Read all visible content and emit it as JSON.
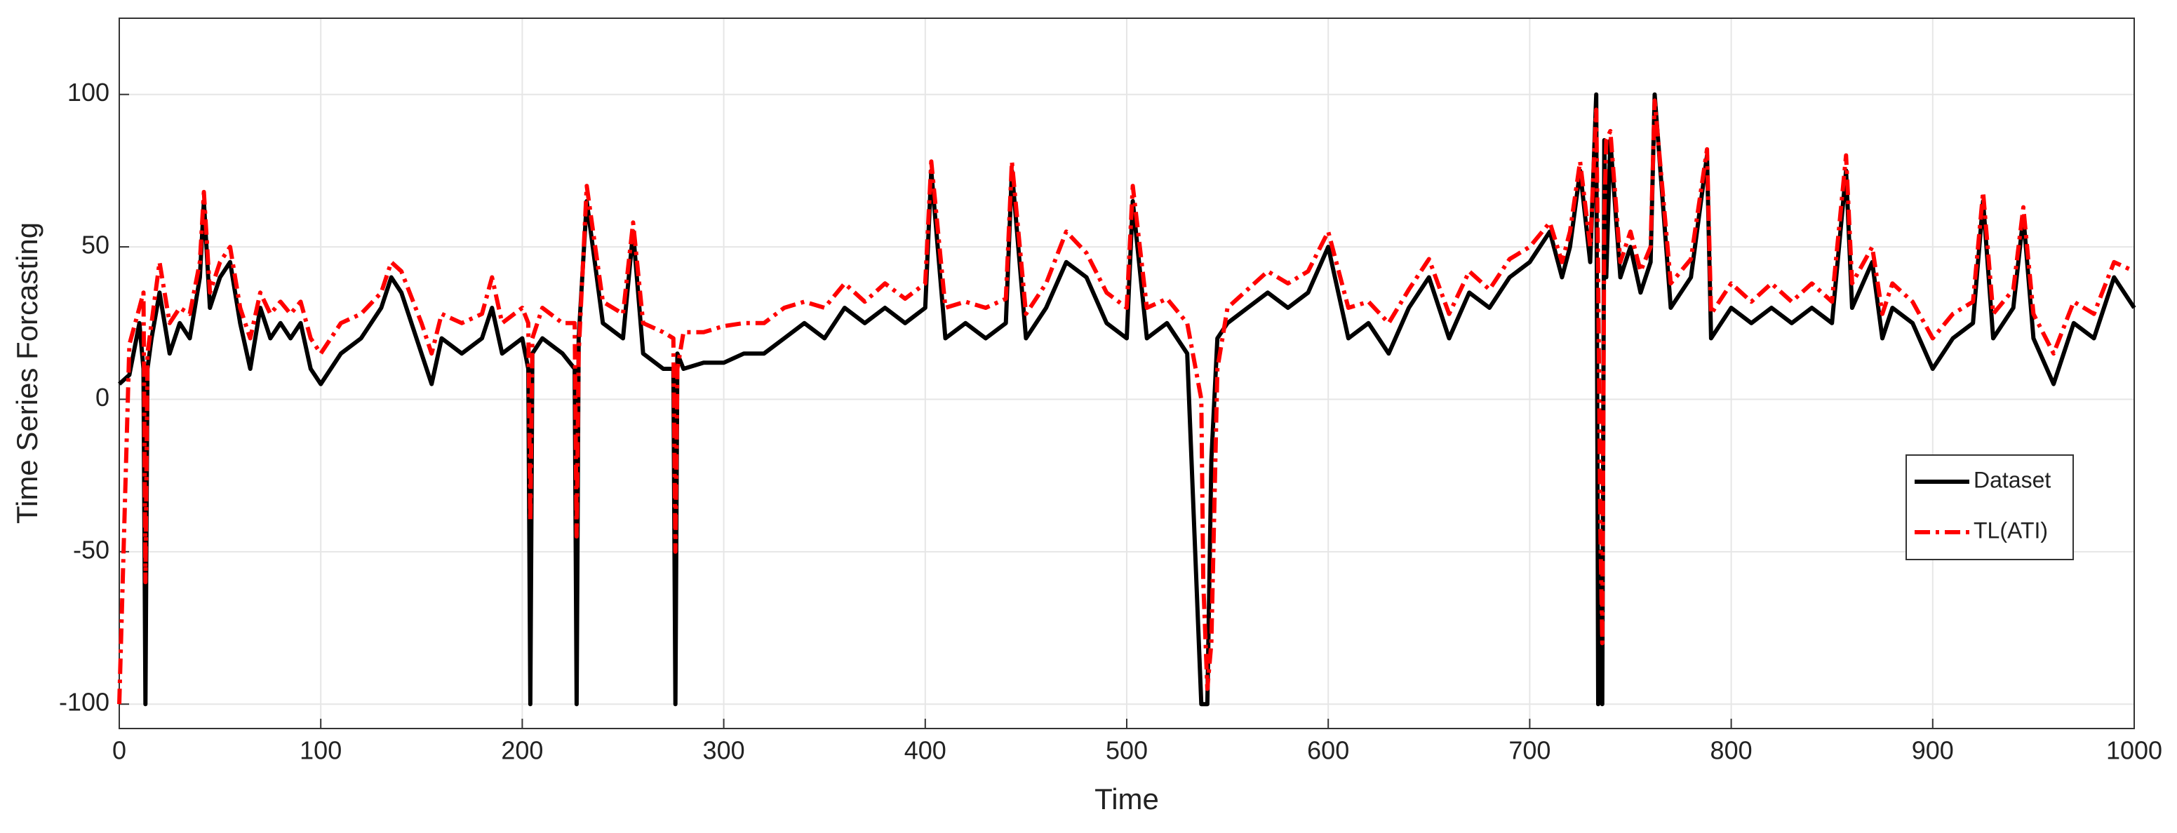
{
  "chart_data": {
    "type": "line",
    "xlabel": "Time",
    "ylabel": "Time Series Forcasting",
    "xlim": [
      0,
      1000
    ],
    "xticks": [
      0,
      100,
      200,
      300,
      400,
      500,
      600,
      700,
      800,
      900,
      1000
    ],
    "ylim": [
      -108,
      125
    ],
    "yticks": [
      -100,
      -50,
      0,
      50,
      100
    ],
    "grid": true,
    "legend": "right",
    "x": [
      0,
      5,
      10,
      12,
      13,
      14,
      16,
      20,
      25,
      30,
      35,
      40,
      42,
      45,
      50,
      55,
      60,
      65,
      70,
      75,
      80,
      85,
      90,
      95,
      100,
      110,
      120,
      130,
      135,
      140,
      150,
      155,
      160,
      170,
      180,
      185,
      190,
      200,
      203,
      204,
      205,
      210,
      220,
      226,
      227,
      228,
      232,
      240,
      250,
      255,
      260,
      270,
      275,
      276,
      277,
      280,
      290,
      300,
      310,
      320,
      330,
      340,
      350,
      360,
      370,
      380,
      390,
      400,
      403,
      410,
      420,
      430,
      440,
      443,
      450,
      460,
      470,
      480,
      490,
      500,
      503,
      510,
      520,
      530,
      537,
      538,
      540,
      542,
      545,
      550,
      560,
      570,
      580,
      590,
      600,
      610,
      620,
      630,
      640,
      650,
      660,
      670,
      680,
      690,
      700,
      710,
      716,
      720,
      725,
      730,
      733,
      734,
      735,
      736,
      737,
      738,
      740,
      745,
      750,
      755,
      760,
      762,
      770,
      780,
      788,
      790,
      800,
      810,
      820,
      830,
      840,
      850,
      857,
      860,
      870,
      875,
      880,
      890,
      900,
      910,
      920,
      925,
      930,
      940,
      945,
      950,
      960,
      970,
      980,
      990,
      1000
    ],
    "series": [
      {
        "name": "Dataset",
        "color": "#000000",
        "line_style": "solid",
        "values": [
          5,
          8,
          25,
          10,
          -100,
          10,
          20,
          35,
          15,
          25,
          20,
          40,
          65,
          30,
          40,
          45,
          25,
          10,
          30,
          20,
          25,
          20,
          25,
          10,
          5,
          15,
          20,
          30,
          40,
          35,
          15,
          5,
          20,
          15,
          20,
          30,
          15,
          20,
          10,
          -100,
          15,
          20,
          15,
          10,
          -100,
          20,
          65,
          25,
          20,
          55,
          15,
          10,
          10,
          -100,
          15,
          10,
          12,
          12,
          15,
          15,
          20,
          25,
          20,
          30,
          25,
          30,
          25,
          30,
          75,
          20,
          25,
          20,
          25,
          75,
          20,
          30,
          45,
          40,
          25,
          20,
          65,
          20,
          25,
          15,
          -100,
          -100,
          -100,
          -20,
          20,
          25,
          30,
          35,
          30,
          35,
          50,
          20,
          25,
          15,
          30,
          40,
          20,
          35,
          30,
          40,
          45,
          55,
          40,
          50,
          75,
          45,
          100,
          -100,
          -50,
          -100,
          85,
          40,
          85,
          40,
          50,
          35,
          45,
          100,
          30,
          40,
          80,
          20,
          30,
          25,
          30,
          25,
          30,
          25,
          75,
          30,
          45,
          20,
          30,
          25,
          10,
          20,
          25,
          65,
          20,
          30,
          60,
          20,
          5,
          25,
          20,
          40,
          30
        ]
      },
      {
        "name": "TL(ATI)",
        "color": "#ff0000",
        "line_style": "dash-dot",
        "values": [
          -100,
          18,
          30,
          35,
          -60,
          15,
          25,
          45,
          25,
          30,
          28,
          45,
          68,
          35,
          45,
          50,
          30,
          20,
          35,
          28,
          32,
          28,
          32,
          20,
          15,
          25,
          28,
          35,
          45,
          42,
          25,
          15,
          28,
          25,
          28,
          40,
          25,
          30,
          25,
          -40,
          20,
          30,
          25,
          25,
          -45,
          15,
          70,
          32,
          28,
          58,
          25,
          22,
          20,
          -50,
          10,
          22,
          22,
          24,
          25,
          25,
          30,
          32,
          30,
          38,
          32,
          38,
          33,
          38,
          78,
          30,
          32,
          30,
          33,
          78,
          28,
          38,
          55,
          48,
          35,
          30,
          70,
          30,
          33,
          25,
          0,
          -60,
          -95,
          -80,
          10,
          30,
          36,
          42,
          38,
          42,
          55,
          30,
          32,
          25,
          36,
          46,
          28,
          42,
          36,
          46,
          50,
          58,
          45,
          55,
          78,
          50,
          95,
          40,
          -40,
          -80,
          60,
          85,
          88,
          45,
          55,
          42,
          50,
          98,
          38,
          46,
          82,
          28,
          38,
          32,
          38,
          32,
          38,
          32,
          80,
          38,
          50,
          28,
          38,
          32,
          20,
          28,
          32,
          68,
          28,
          36,
          63,
          28,
          15,
          32,
          28,
          45,
          42
        ]
      }
    ]
  }
}
